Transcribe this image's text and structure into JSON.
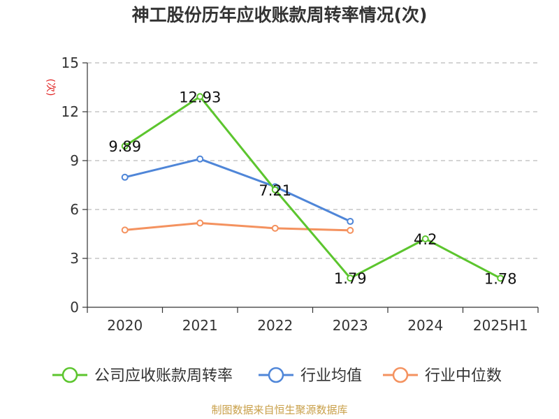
{
  "chart_data": {
    "type": "line",
    "title": "神工股份历年应收账款周转率情况(次)",
    "ylabel": "(次)",
    "xlabel": "",
    "categories": [
      "2020",
      "2021",
      "2022",
      "2023",
      "2024",
      "2025H1"
    ],
    "ylim": [
      0,
      15
    ],
    "yticks": [
      0,
      3,
      6,
      9,
      12,
      15
    ],
    "grid": true,
    "legend_position": "bottom",
    "series": [
      {
        "name": "公司应收账款周转率",
        "color": "#5cc52e",
        "values": [
          9.89,
          12.93,
          7.21,
          1.79,
          4.2,
          1.78
        ],
        "labels": [
          "9.89",
          "12.93",
          "7.21",
          "1.79",
          "4.2",
          "1.78"
        ]
      },
      {
        "name": "行业均值",
        "color": "#4f86d8",
        "values": [
          7.98,
          9.1,
          7.4,
          5.27,
          null,
          null
        ]
      },
      {
        "name": "行业中位数",
        "color": "#f4925f",
        "values": [
          4.74,
          5.17,
          4.85,
          4.72,
          null,
          null
        ]
      }
    ]
  },
  "source": "制图数据来自恒生聚源数据库"
}
